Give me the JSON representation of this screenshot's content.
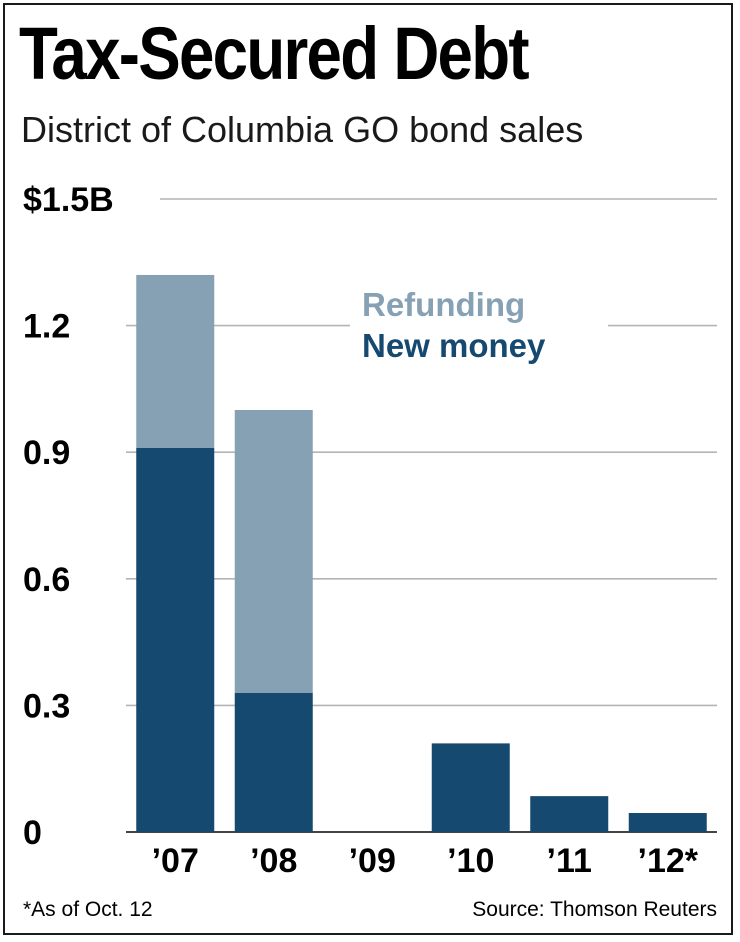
{
  "chart_data": {
    "type": "bar",
    "stacked": true,
    "title": "Tax-Secured Debt",
    "subtitle": "District of Columbia GO bond sales",
    "categories": [
      "’07",
      "’08",
      "’09",
      "’10",
      "’11",
      "’12*"
    ],
    "series": [
      {
        "name": "New money",
        "color": "#16496f",
        "values": [
          0.91,
          0.33,
          0,
          0.21,
          0.085,
          0.045
        ]
      },
      {
        "name": "Refunding",
        "color": "#86a0b4",
        "values": [
          0.41,
          0.67,
          0,
          0,
          0,
          0
        ]
      }
    ],
    "yticks": [
      {
        "value": 0,
        "label": "0"
      },
      {
        "value": 0.3,
        "label": "0.3"
      },
      {
        "value": 0.6,
        "label": "0.6"
      },
      {
        "value": 0.9,
        "label": "0.9"
      },
      {
        "value": 1.2,
        "label": "1.2"
      },
      {
        "value": 1.5,
        "label": "$1.5B"
      }
    ],
    "ylim": [
      0,
      1.5
    ],
    "legend": [
      {
        "label": "Refunding",
        "color": "#86a0b4"
      },
      {
        "label": "New money",
        "color": "#16496f"
      }
    ],
    "legend_position": "top-right",
    "grid": true
  },
  "footnote": "*As of Oct. 12",
  "source": "Source: Thomson Reuters"
}
